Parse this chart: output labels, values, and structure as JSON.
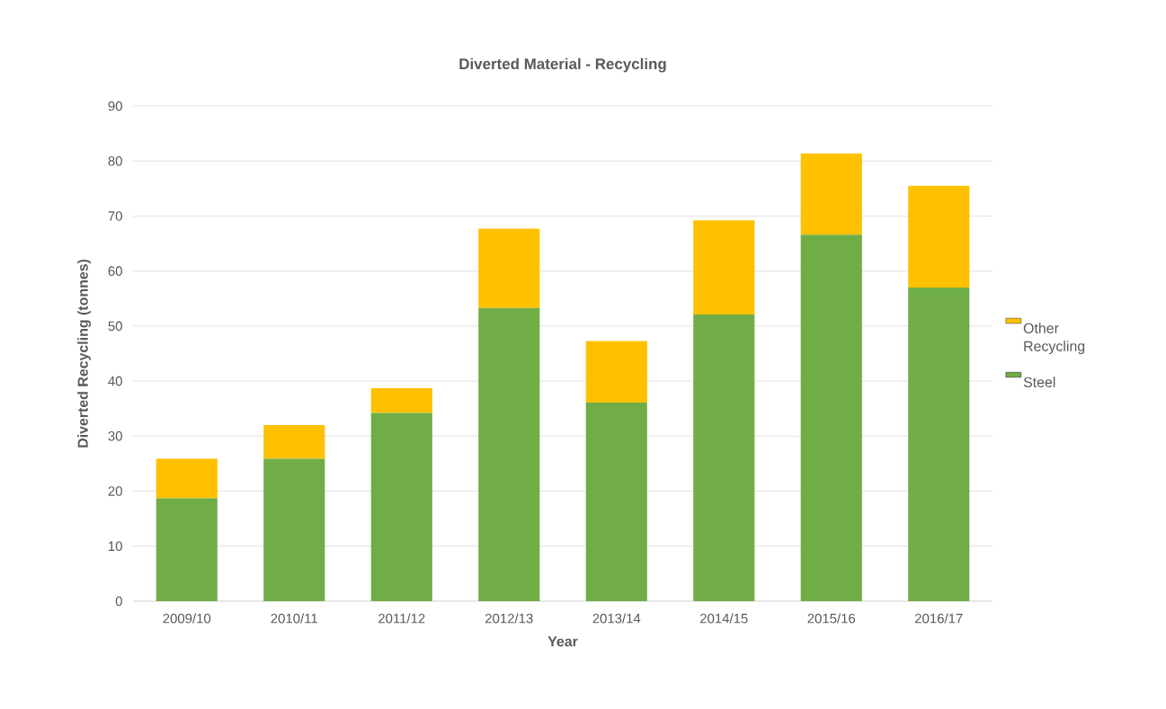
{
  "chart_data": {
    "type": "bar",
    "title": "Diverted Material - Recycling",
    "xlabel": "Year",
    "ylabel": "Diverted Recycling (tonnes)",
    "categories": [
      "2009/10",
      "2010/11",
      "2011/12",
      "2012/13",
      "2013/14",
      "2014/15",
      "2015/16",
      "2016/17"
    ],
    "series": [
      {
        "name": "Steel",
        "color": "#70ad47",
        "values": [
          18.7,
          25.9,
          34.2,
          53.3,
          36.1,
          52.1,
          66.6,
          57.0
        ]
      },
      {
        "name": "Other Recycling",
        "color": "#ffc000",
        "values": [
          7.2,
          6.1,
          4.5,
          14.4,
          11.2,
          17.1,
          14.8,
          18.5
        ]
      }
    ],
    "stacked": true,
    "ylim": [
      0,
      90
    ],
    "yticks": [
      0,
      10,
      20,
      30,
      40,
      50,
      60,
      70,
      80,
      90
    ],
    "grid": "y",
    "legend": "right"
  }
}
